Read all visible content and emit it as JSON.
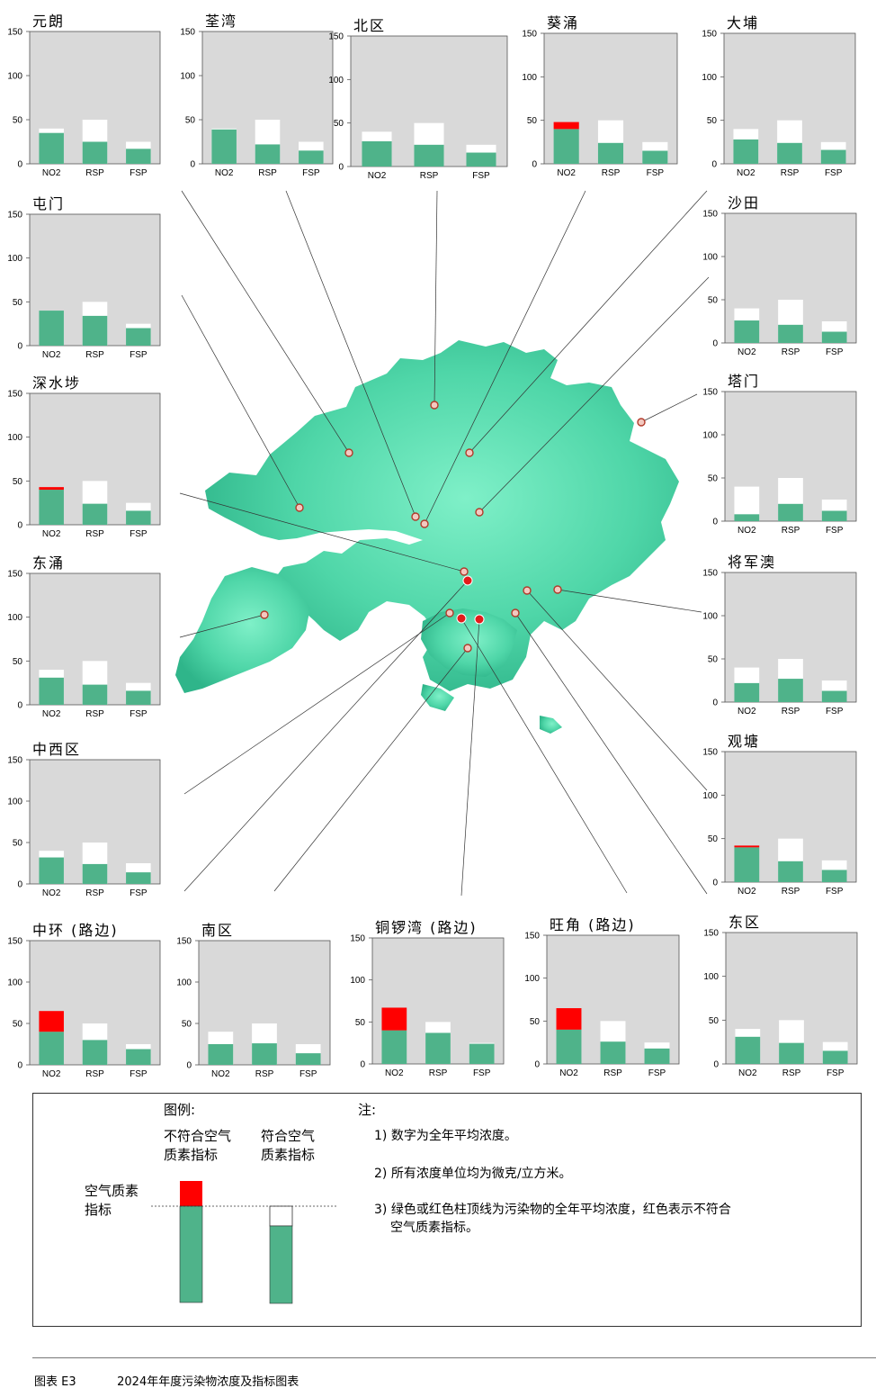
{
  "legend": {
    "heading": "图例:",
    "exceed_label": [
      "不符合空气",
      "质素指标"
    ],
    "comply_label": [
      "符合空气",
      "质素指标"
    ],
    "aqo_label": [
      "空气质素",
      "指标"
    ]
  },
  "notes": {
    "heading": "注:",
    "items": [
      [
        "1) 数字为全年平均浓度。"
      ],
      [
        "2) 所有浓度单位均为微克/立方米。"
      ],
      [
        "3) 绿色或红色柱顶线为污染物的全年平均浓度，红色表示不符合",
        "空气质素指标。"
      ]
    ]
  },
  "footer": {
    "label": "图表  E3",
    "caption": "2024年年度污染物浓度及指标图表"
  },
  "colors": {
    "green": "#4fb38a",
    "red": "#ff0000",
    "panel": "#d9d9d9",
    "map": "#3ec99a",
    "map_light": "#7ff0c8"
  },
  "chart_data": {
    "type": "bar",
    "categories": [
      "NO2",
      "RSP",
      "FSP"
    ],
    "ylim": [
      0,
      150
    ],
    "yticks": [
      0,
      50,
      100,
      150
    ],
    "aqo": [
      40,
      50,
      25
    ],
    "stations": [
      {
        "name": "元朗",
        "values": [
          35,
          25,
          17
        ]
      },
      {
        "name": "荃湾",
        "values": [
          39,
          22,
          15
        ]
      },
      {
        "name": "北区",
        "values": [
          29,
          25,
          16
        ]
      },
      {
        "name": "葵涌",
        "values": [
          48,
          24,
          15
        ]
      },
      {
        "name": "大埔",
        "values": [
          28,
          24,
          16
        ]
      },
      {
        "name": "屯门",
        "values": [
          40,
          34,
          20
        ]
      },
      {
        "name": "沙田",
        "values": [
          26,
          21,
          13
        ]
      },
      {
        "name": "深水埗",
        "values": [
          43,
          24,
          16
        ]
      },
      {
        "name": "塔门",
        "values": [
          8,
          20,
          12
        ]
      },
      {
        "name": "东涌",
        "values": [
          31,
          23,
          16
        ]
      },
      {
        "name": "将军澳",
        "values": [
          22,
          27,
          13
        ]
      },
      {
        "name": "中西区",
        "values": [
          32,
          24,
          14
        ]
      },
      {
        "name": "观塘",
        "values": [
          42,
          24,
          14
        ]
      },
      {
        "name": "中环 (路边)",
        "values": [
          65,
          30,
          19
        ]
      },
      {
        "name": "南区",
        "values": [
          25,
          26,
          14
        ]
      },
      {
        "name": "铜锣湾 (路边)",
        "values": [
          67,
          37,
          24
        ]
      },
      {
        "name": "旺角 (路边)",
        "values": [
          65,
          26,
          18
        ]
      },
      {
        "name": "东区",
        "values": [
          31,
          24,
          15
        ]
      }
    ]
  }
}
